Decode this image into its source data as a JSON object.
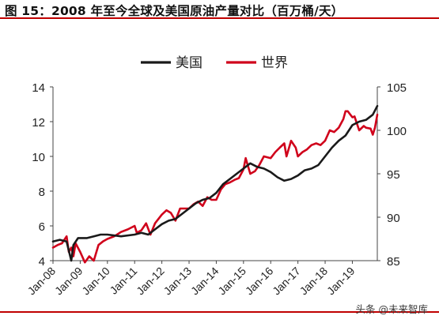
{
  "header": {
    "title": "图 15：2008 年至今全球及美国原油产量对比（百万桶/天）"
  },
  "colors": {
    "rule": "#c00000",
    "us": "#1a1a1a",
    "world": "#d0021b",
    "axis": "#444444"
  },
  "watermark": {
    "text": "头条 @未来智库",
    "icon": "headline-logo-icon"
  },
  "chart_data": {
    "type": "line",
    "title": "",
    "legend": {
      "placement": "top-center",
      "entries": [
        "美国",
        "世界"
      ]
    },
    "x": {
      "ticks": [
        "Jan-08",
        "Jan-09",
        "Jan-10",
        "Jan-11",
        "Jan-12",
        "Jan-13",
        "Jan-14",
        "Jan-15",
        "Jan-16",
        "Jan-17",
        "Jan-18",
        "Jan-19"
      ],
      "start": 2008.0,
      "end": 2019.917
    },
    "y_left": {
      "min": 4,
      "max": 14,
      "ticks": [
        4,
        6,
        8,
        10,
        12,
        14
      ],
      "series": "美国"
    },
    "y_right": {
      "min": 85,
      "max": 105,
      "ticks": [
        85,
        90,
        95,
        100,
        105
      ],
      "series": "世界"
    },
    "grid": false,
    "series": [
      {
        "name": "美国",
        "axis": "left",
        "color": "#1a1a1a",
        "x": [
          2008.0,
          2008.25,
          2008.5,
          2008.67,
          2008.75,
          2008.92,
          2009.0,
          2009.25,
          2009.5,
          2009.75,
          2010.0,
          2010.5,
          2011.0,
          2011.25,
          2011.5,
          2011.75,
          2012.0,
          2012.25,
          2012.5,
          2012.75,
          2013.0,
          2013.25,
          2013.5,
          2013.75,
          2014.0,
          2014.25,
          2014.5,
          2014.75,
          2015.0,
          2015.25,
          2015.5,
          2015.75,
          2016.0,
          2016.25,
          2016.5,
          2016.75,
          2017.0,
          2017.25,
          2017.5,
          2017.75,
          2018.0,
          2018.25,
          2018.5,
          2018.75,
          2019.0,
          2019.25,
          2019.5,
          2019.75,
          2019.917
        ],
        "y": [
          5.1,
          5.2,
          5.1,
          4.0,
          4.9,
          5.3,
          5.3,
          5.3,
          5.4,
          5.5,
          5.5,
          5.4,
          5.5,
          5.6,
          5.5,
          5.8,
          6.1,
          6.3,
          6.4,
          6.7,
          7.0,
          7.3,
          7.5,
          7.6,
          7.9,
          8.4,
          8.7,
          9.0,
          9.3,
          9.6,
          9.4,
          9.3,
          9.1,
          8.8,
          8.6,
          8.7,
          8.9,
          9.2,
          9.3,
          9.5,
          10.0,
          10.5,
          10.9,
          11.2,
          11.8,
          12.0,
          12.1,
          12.4,
          12.9
        ]
      },
      {
        "name": "世界",
        "axis": "right",
        "color": "#d0021b",
        "x": [
          2008.0,
          2008.17,
          2008.33,
          2008.5,
          2008.58,
          2008.67,
          2008.75,
          2008.83,
          2009.0,
          2009.17,
          2009.33,
          2009.5,
          2009.67,
          2009.83,
          2010.0,
          2010.25,
          2010.5,
          2010.75,
          2011.0,
          2011.08,
          2011.25,
          2011.42,
          2011.58,
          2011.75,
          2012.0,
          2012.17,
          2012.33,
          2012.5,
          2012.67,
          2012.83,
          2013.0,
          2013.17,
          2013.33,
          2013.5,
          2013.67,
          2013.83,
          2014.0,
          2014.17,
          2014.33,
          2014.5,
          2014.67,
          2014.83,
          2015.0,
          2015.08,
          2015.25,
          2015.42,
          2015.58,
          2015.75,
          2016.0,
          2016.17,
          2016.33,
          2016.5,
          2016.58,
          2016.75,
          2016.92,
          2017.0,
          2017.17,
          2017.33,
          2017.5,
          2017.67,
          2017.83,
          2018.0,
          2018.17,
          2018.33,
          2018.5,
          2018.67,
          2018.75,
          2018.83,
          2019.0,
          2019.08,
          2019.25,
          2019.42,
          2019.5,
          2019.67,
          2019.75,
          2019.83,
          2019.917
        ],
        "y": [
          86.5,
          86.8,
          87.0,
          87.8,
          86.0,
          86.5,
          85.5,
          87.0,
          86.0,
          84.8,
          85.5,
          85.0,
          86.8,
          87.2,
          87.5,
          87.8,
          88.3,
          88.6,
          89.0,
          88.2,
          88.5,
          89.3,
          88.0,
          89.3,
          90.3,
          90.8,
          90.5,
          89.6,
          91.0,
          91.0,
          91.0,
          91.5,
          91.8,
          91.3,
          92.3,
          92.0,
          92.0,
          93.2,
          93.8,
          94.0,
          94.3,
          94.5,
          95.5,
          96.8,
          95.0,
          95.3,
          96.0,
          97.0,
          96.8,
          97.5,
          98.0,
          98.5,
          97.0,
          98.8,
          98.0,
          97.0,
          97.5,
          97.8,
          98.3,
          98.5,
          98.3,
          98.8,
          100.0,
          99.8,
          100.3,
          101.3,
          102.2,
          102.2,
          101.5,
          101.6,
          100.0,
          100.5,
          100.3,
          100.2,
          99.5,
          100.3,
          101.8
        ]
      }
    ]
  }
}
